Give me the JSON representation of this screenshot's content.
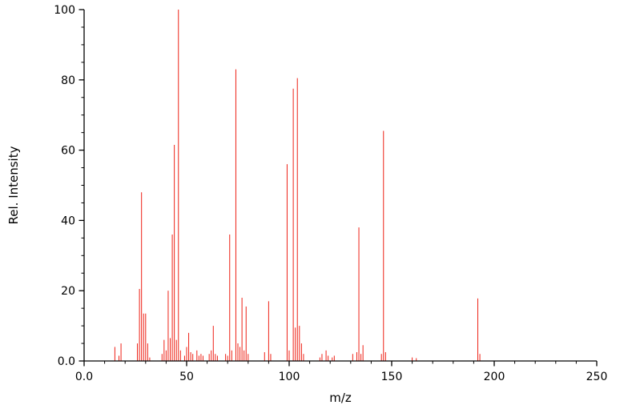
{
  "figure": {
    "background": "#ffffff"
  },
  "chart_data": {
    "type": "bar",
    "subtype": "mass-spectrum-stick-plot",
    "title": "",
    "xlabel": "m/z",
    "ylabel": "Rel. Intensity",
    "xlim": [
      0,
      250
    ],
    "ylim": [
      0,
      100
    ],
    "grid": false,
    "x_ticks": [
      0,
      50,
      100,
      150,
      200,
      250
    ],
    "x_tick_labels": [
      "0.0",
      "50",
      "100",
      "150",
      "200",
      "250"
    ],
    "x_minor_step": 10,
    "y_ticks": [
      0,
      20,
      40,
      60,
      80,
      100
    ],
    "y_tick_labels": [
      "0.0",
      "20",
      "40",
      "60",
      "80",
      "100"
    ],
    "y_minor_step": 5,
    "stick_color": "#ee2116",
    "axis_color": "#000000",
    "peaks": [
      [
        15,
        4
      ],
      [
        17,
        1.5
      ],
      [
        18,
        5
      ],
      [
        26,
        5
      ],
      [
        27,
        20.5
      ],
      [
        28,
        48
      ],
      [
        29,
        13.5
      ],
      [
        30,
        13.5
      ],
      [
        31,
        5
      ],
      [
        32,
        1
      ],
      [
        38,
        2
      ],
      [
        39,
        6
      ],
      [
        40,
        3
      ],
      [
        41,
        20
      ],
      [
        42,
        6.5
      ],
      [
        43,
        36
      ],
      [
        44,
        61.5
      ],
      [
        45,
        6
      ],
      [
        46,
        100
      ],
      [
        47,
        3
      ],
      [
        49,
        1.5
      ],
      [
        50,
        4
      ],
      [
        51,
        8
      ],
      [
        52,
        2.5
      ],
      [
        53,
        2
      ],
      [
        55,
        3
      ],
      [
        56,
        1.5
      ],
      [
        57,
        2
      ],
      [
        58,
        1.5
      ],
      [
        61,
        2
      ],
      [
        62,
        3
      ],
      [
        63,
        10
      ],
      [
        64,
        2
      ],
      [
        65,
        1.5
      ],
      [
        69,
        2
      ],
      [
        70,
        1.5
      ],
      [
        71,
        36
      ],
      [
        72,
        3
      ],
      [
        74,
        83
      ],
      [
        75,
        5
      ],
      [
        76,
        4
      ],
      [
        77,
        18
      ],
      [
        78,
        3
      ],
      [
        79,
        15.5
      ],
      [
        80,
        2
      ],
      [
        88,
        2.5
      ],
      [
        90,
        17
      ],
      [
        91,
        2
      ],
      [
        99,
        56
      ],
      [
        100,
        3
      ],
      [
        102,
        77.5
      ],
      [
        103,
        9.5
      ],
      [
        104,
        80.5
      ],
      [
        105,
        10
      ],
      [
        106,
        5
      ],
      [
        107,
        2
      ],
      [
        115,
        1
      ],
      [
        116,
        2
      ],
      [
        118,
        3
      ],
      [
        119,
        1.5
      ],
      [
        121,
        1
      ],
      [
        122,
        1.5
      ],
      [
        131,
        2
      ],
      [
        133,
        2.5
      ],
      [
        134,
        38
      ],
      [
        135,
        2
      ],
      [
        136,
        4.5
      ],
      [
        145,
        2
      ],
      [
        146,
        65.5
      ],
      [
        147,
        2.5
      ],
      [
        160,
        1
      ],
      [
        162,
        0.8
      ],
      [
        192,
        17.8
      ],
      [
        193,
        2
      ]
    ]
  }
}
